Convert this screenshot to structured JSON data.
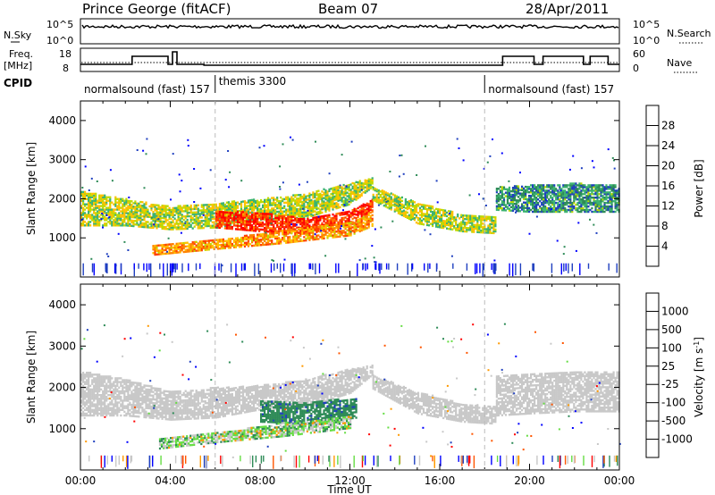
{
  "header": {
    "station": "Prince George (fitACF)",
    "beam": "Beam 07",
    "date": "28/Apr/2011"
  },
  "sky_panel": {
    "left_label": "N.Sky",
    "right_label": "N.Search",
    "left_ticks": [
      "10^5",
      "10^0"
    ],
    "right_ticks": [
      "10^5",
      "10^0"
    ]
  },
  "freq_panel": {
    "left_label_1": "Freq.",
    "left_label_2": "[MHz]",
    "right_label": "Nave",
    "left_ticks": [
      "18",
      "8"
    ],
    "right_ticks": [
      "60",
      "0"
    ]
  },
  "cpid": {
    "label": "CPID",
    "segments": [
      {
        "text": "normalsound (fast) 157",
        "start_hour": 0
      },
      {
        "text": "themis 3300",
        "start_hour": 6
      },
      {
        "text": "normalsound (fast) 157",
        "start_hour": 18
      }
    ]
  },
  "colors": {
    "power_scale": [
      "#0000ff",
      "#1f3fbf",
      "#2e8b57",
      "#3cb371",
      "#bfd900",
      "#ffc000",
      "#ff8000",
      "#ff4000",
      "#ff0000"
    ],
    "velocity_scale": [
      "#ff0000",
      "#ff5500",
      "#ff9900",
      "#c8c8c8",
      "#c8c8c8",
      "#66dd44",
      "#2e8b57",
      "#1f3fbf",
      "#0000ff"
    ]
  },
  "chart_data": [
    {
      "type": "heatmap",
      "title": "",
      "xlabel": "Time UT",
      "ylabel": "Slant Range [km]",
      "colorbar_label": "Power [dB]",
      "colorbar_ticks": [
        "28",
        "24",
        "20",
        "16",
        "12",
        "8",
        "4"
      ],
      "xlim": [
        0,
        24
      ],
      "ylim": [
        0,
        4500
      ],
      "x_ticks": [
        "00:00",
        "04:00",
        "08:00",
        "12:00",
        "16:00",
        "20:00",
        "00:00"
      ],
      "y_ticks": [
        "4000",
        "3000",
        "2000",
        "1000"
      ],
      "bands": [
        {
          "x": [
            0,
            2,
            4,
            6,
            8,
            10,
            12,
            13
          ],
          "low": [
            1300,
            1300,
            1200,
            1250,
            1450,
            1500,
            1850,
            2300
          ],
          "high": [
            2200,
            2000,
            1800,
            1900,
            2000,
            2150,
            2400,
            2550
          ],
          "power": 14
        },
        {
          "x": [
            6,
            8,
            10,
            12,
            13
          ],
          "low": [
            1250,
            1150,
            1100,
            1300,
            1700
          ],
          "high": [
            1700,
            1650,
            1500,
            1700,
            2000
          ],
          "power": 26
        },
        {
          "x": [
            3.2,
            6,
            9,
            12,
            13
          ],
          "low": [
            550,
            700,
            850,
            1050,
            1300
          ],
          "high": [
            800,
            950,
            1200,
            1400,
            1700
          ],
          "power": 20
        },
        {
          "x": [
            13,
            15,
            17,
            18.5
          ],
          "low": [
            1950,
            1350,
            1150,
            1100
          ],
          "high": [
            2300,
            1900,
            1600,
            1550
          ],
          "power": 14
        },
        {
          "x": [
            18.5,
            20,
            22,
            24
          ],
          "low": [
            1700,
            1650,
            1650,
            1650
          ],
          "high": [
            2300,
            2350,
            2400,
            2350
          ],
          "power": 8
        }
      ]
    },
    {
      "type": "heatmap",
      "title": "",
      "xlabel": "Time UT",
      "ylabel": "Slant Range [km]",
      "colorbar_label": "Velocity [m s^-1]",
      "colorbar_ticks": [
        "1000",
        "500",
        "100",
        "25",
        "-25",
        "-100",
        "-500",
        "-1000"
      ],
      "xlim": [
        0,
        24
      ],
      "ylim": [
        0,
        4500
      ],
      "x_ticks": [
        "00:00",
        "04:00",
        "08:00",
        "12:00",
        "16:00",
        "20:00",
        "00:00"
      ],
      "y_ticks": [
        "4000",
        "3000",
        "2000",
        "1000"
      ],
      "bands": [
        {
          "x": [
            0,
            2,
            4,
            6,
            8,
            10,
            12,
            13
          ],
          "low": [
            1300,
            1300,
            1200,
            1250,
            1450,
            1500,
            1850,
            2300
          ],
          "high": [
            2400,
            2200,
            1900,
            2000,
            2050,
            2200,
            2450,
            2550
          ],
          "velocity": 0
        },
        {
          "x": [
            8,
            10,
            12.3
          ],
          "low": [
            1150,
            1100,
            1250
          ],
          "high": [
            1700,
            1650,
            1750
          ],
          "velocity": 300
        },
        {
          "x": [
            3.5,
            6,
            9,
            12
          ],
          "low": [
            500,
            650,
            800,
            1000
          ],
          "high": [
            750,
            900,
            1150,
            1300
          ],
          "velocity": 80
        },
        {
          "x": [
            13,
            15,
            17,
            18.5
          ],
          "low": [
            1950,
            1350,
            1150,
            1100
          ],
          "high": [
            2300,
            1900,
            1600,
            1550
          ],
          "velocity": 0
        },
        {
          "x": [
            18.5,
            20,
            22,
            24
          ],
          "low": [
            1300,
            1350,
            1400,
            1400
          ],
          "high": [
            2300,
            2350,
            2400,
            2400
          ],
          "velocity": 0
        }
      ]
    }
  ]
}
